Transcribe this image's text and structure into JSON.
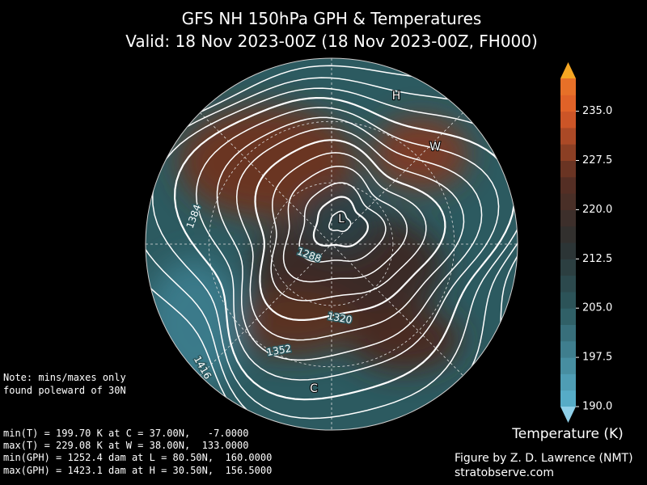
{
  "title": [
    "GFS NH 150hPa GPH & Temperatures",
    "Valid: 18 Nov 2023-00Z  (18 Nov 2023-00Z, FH000)"
  ],
  "map": {
    "contour_labels": [
      1384,
      1288,
      1320,
      1352,
      1416
    ],
    "markers": [
      "H",
      "W",
      "L",
      "C"
    ]
  },
  "note": [
    "Note: mins/maxes only",
    "found poleward of 30N"
  ],
  "stats": [
    "min(T) = 199.70 K at C = 37.00N,   -7.0000",
    "max(T) = 229.08 K at W = 38.00N,  133.0000",
    "min(GPH) = 1252.4 dam at L = 80.50N,  160.0000",
    "max(GPH) = 1423.1 dam at H = 30.50N,  156.5000"
  ],
  "colorbar": {
    "label": "Temperature (K)",
    "range": [
      190,
      240
    ],
    "ticks": [
      {
        "value": 190,
        "label": "190.0"
      },
      {
        "value": 197.5,
        "label": "197.5"
      },
      {
        "value": 205,
        "label": "205.0"
      },
      {
        "value": 212.5,
        "label": "212.5"
      },
      {
        "value": 220,
        "label": "220.0"
      },
      {
        "value": 227.5,
        "label": "227.5"
      },
      {
        "value": 235,
        "label": "235.0"
      }
    ]
  },
  "credit": [
    "Figure by Z. D. Lawrence (NMT)",
    "stratobserve.com"
  ]
}
